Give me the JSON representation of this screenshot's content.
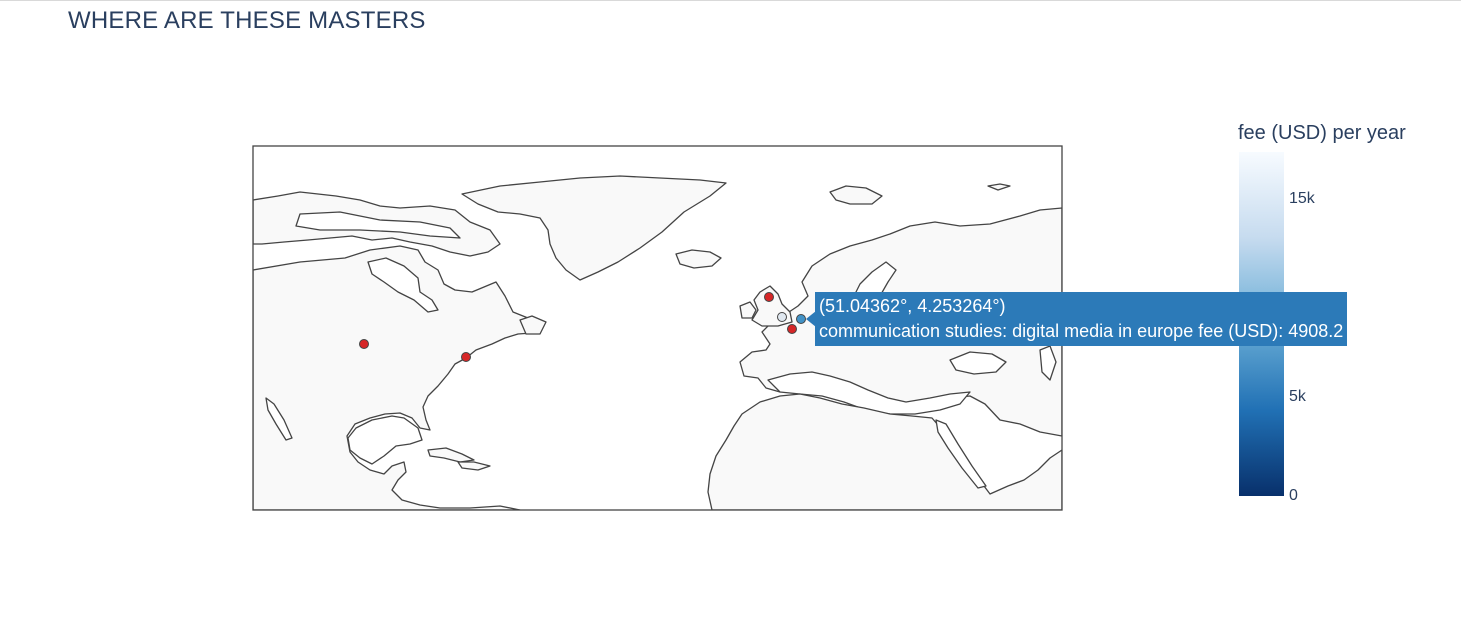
{
  "title": "WHERE ARE THESE MASTERS",
  "colorbar": {
    "title": "fee (USD) per year",
    "ticks": [
      "0",
      "5k",
      "15k"
    ],
    "tick_values": [
      0,
      5000,
      15000
    ],
    "range": [
      0,
      17400
    ],
    "colorscale": [
      "#08306b",
      "#2171b5",
      "#6baed6",
      "#c6dbef",
      "#f7fbff"
    ]
  },
  "tooltip": {
    "line1": "(51.04362°, 4.253264°)",
    "line2": "communication studies: digital media in europe fee (USD): 4908.2"
  },
  "map": {
    "land_color": "#f9f9f9",
    "coast_color": "#444444",
    "marker_color": "#d62728"
  }
}
